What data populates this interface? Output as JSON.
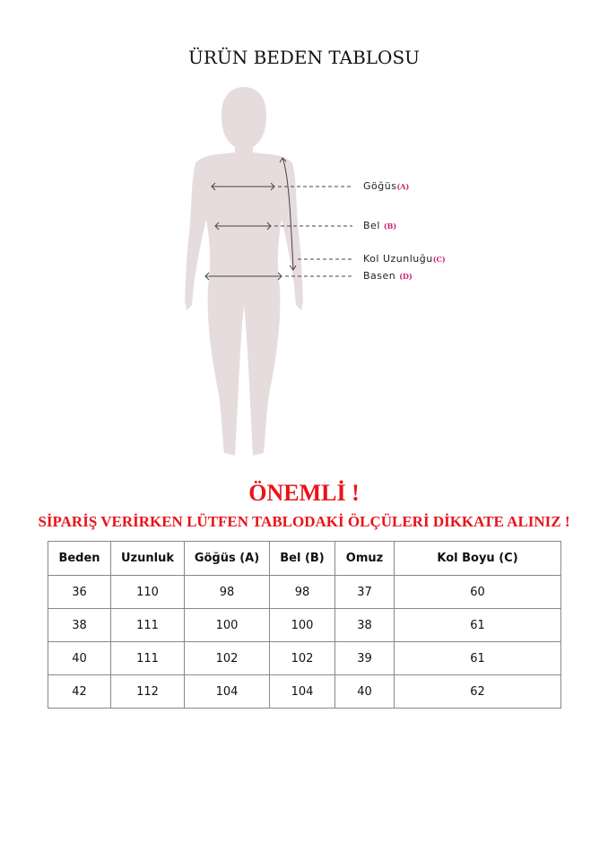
{
  "title": "ÜRÜN BEDEN TABLOSU",
  "figure": {
    "silhouette_color": "#e6dcdd",
    "labels": [
      {
        "text": "Göğüs",
        "code": "(A)"
      },
      {
        "text": "Bel",
        "code": "(B)"
      },
      {
        "text": "Kol Uzunluğu",
        "code": "(C)"
      },
      {
        "text": "Basen",
        "code": "(D)"
      }
    ]
  },
  "important": "ÖNEMLİ !",
  "warning": "SİPARİŞ VERİRKEN LÜTFEN TABLODAKİ ÖLÇÜLERİ DİKKATE ALINIZ !",
  "accent_color": "#e8141a",
  "table": {
    "headers": [
      "Beden",
      "Uzunluk",
      "Göğüs (A)",
      "Bel (B)",
      "Omuz",
      "Kol Boyu (C)"
    ],
    "rows": [
      [
        "36",
        "110",
        "98",
        "98",
        "37",
        "60"
      ],
      [
        "38",
        "111",
        "100",
        "100",
        "38",
        "61"
      ],
      [
        "40",
        "111",
        "102",
        "102",
        "39",
        "61"
      ],
      [
        "42",
        "112",
        "104",
        "104",
        "40",
        "62"
      ]
    ]
  }
}
